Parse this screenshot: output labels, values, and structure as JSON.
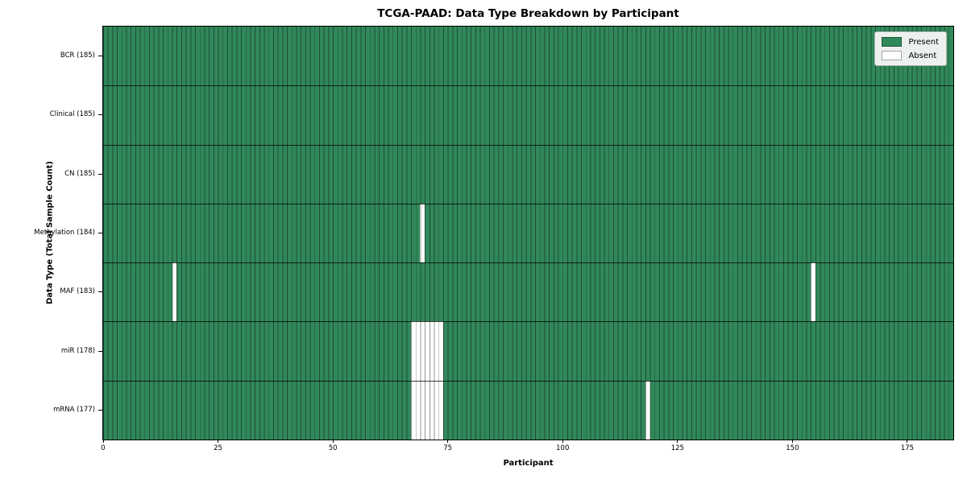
{
  "chart_data": {
    "type": "heatmap",
    "title": "TCGA-PAAD: Data Type Breakdown by Participant",
    "xlabel": "Participant",
    "ylabel": "Data Type (Total Sample Count)",
    "xlim": [
      0,
      185
    ],
    "x_ticks": [
      0,
      25,
      50,
      75,
      100,
      125,
      150,
      175
    ],
    "n_participants": 185,
    "grid": "per-cell vertical borders and row separator lines visible",
    "legend_position": "upper right",
    "rows": [
      {
        "label": "BCR (185)",
        "total": 185,
        "absent_participants": []
      },
      {
        "label": "Clinical (185)",
        "total": 185,
        "absent_participants": []
      },
      {
        "label": "CN (185)",
        "total": 185,
        "absent_participants": []
      },
      {
        "label": "Methylation (184)",
        "total": 184,
        "absent_participants": [
          69
        ]
      },
      {
        "label": "MAF (183)",
        "total": 183,
        "absent_participants": [
          15,
          154
        ]
      },
      {
        "label": "miR (178)",
        "total": 178,
        "absent_participants": [
          67,
          68,
          69,
          70,
          71,
          72,
          73
        ]
      },
      {
        "label": "mRNA (177)",
        "total": 177,
        "absent_participants": [
          67,
          68,
          69,
          70,
          71,
          72,
          73,
          118
        ]
      }
    ],
    "legend": [
      {
        "label": "Present",
        "color": "#31885a"
      },
      {
        "label": "Absent",
        "color": "#ffffff"
      }
    ],
    "colors": {
      "present": "#31885a",
      "absent": "#ffffff",
      "cell_edge": "#1c4a33",
      "row_separator": "#202020",
      "legend_bg": "#edf1ed"
    }
  }
}
